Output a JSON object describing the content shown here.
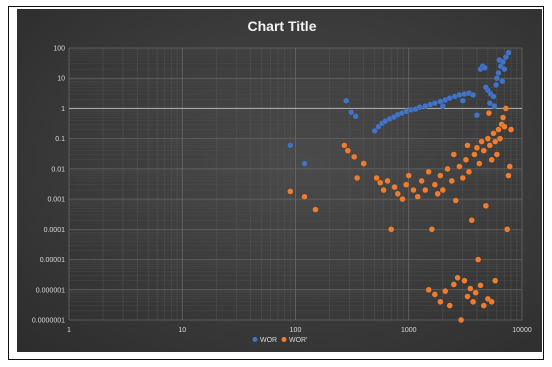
{
  "chart_data": {
    "type": "scatter",
    "title": "Chart Title",
    "xlabel": "",
    "ylabel": "",
    "xscale": "log",
    "yscale": "log",
    "xlim": [
      1,
      10000
    ],
    "ylim": [
      1e-07,
      100
    ],
    "x_ticks": [
      "1",
      "10",
      "100",
      "1000",
      "10000"
    ],
    "y_ticks": [
      "100",
      "10",
      "1",
      "0.1",
      "0.01",
      "0.001",
      "0.0001",
      "0.00001",
      "0.000001",
      "0.0000001"
    ],
    "grid": true,
    "reference_line_y": 1,
    "legend_position": "bottom",
    "series": [
      {
        "name": "WOR",
        "color": "#4472C4",
        "points": [
          [
            90,
            0.06
          ],
          [
            120,
            0.015
          ],
          [
            280,
            1.8
          ],
          [
            310,
            0.75
          ],
          [
            340,
            0.55
          ],
          [
            500,
            0.18
          ],
          [
            540,
            0.25
          ],
          [
            580,
            0.32
          ],
          [
            620,
            0.38
          ],
          [
            680,
            0.45
          ],
          [
            740,
            0.52
          ],
          [
            800,
            0.62
          ],
          [
            870,
            0.7
          ],
          [
            950,
            0.8
          ],
          [
            1050,
            0.9
          ],
          [
            1150,
            0.95
          ],
          [
            1250,
            1.1
          ],
          [
            1400,
            1.2
          ],
          [
            1550,
            1.35
          ],
          [
            1700,
            1.5
          ],
          [
            1900,
            1.7
          ],
          [
            2100,
            1.9
          ],
          [
            2300,
            2.2
          ],
          [
            2550,
            2.5
          ],
          [
            2800,
            2.8
          ],
          [
            3100,
            3.0
          ],
          [
            3400,
            3.2
          ],
          [
            3700,
            2.8
          ],
          [
            4000,
            0.6
          ],
          [
            4300,
            20
          ],
          [
            4500,
            25
          ],
          [
            4700,
            22
          ],
          [
            5000,
            4
          ],
          [
            5300,
            3
          ],
          [
            5600,
            2.5
          ],
          [
            5900,
            6
          ],
          [
            6200,
            15
          ],
          [
            6500,
            25
          ],
          [
            6800,
            35
          ],
          [
            7200,
            50
          ],
          [
            7600,
            70
          ],
          [
            5200,
            1.5
          ],
          [
            5700,
            1.2
          ],
          [
            6000,
            10
          ],
          [
            6700,
            8
          ],
          [
            7000,
            20
          ],
          [
            3000,
            1.8
          ],
          [
            2000,
            1.2
          ],
          [
            4800,
            5
          ],
          [
            6300,
            40
          ]
        ]
      },
      {
        "name": "WOR'",
        "color": "#ED7D31",
        "points": [
          [
            90,
            0.0018
          ],
          [
            120,
            0.0012
          ],
          [
            150,
            0.00045
          ],
          [
            270,
            0.06
          ],
          [
            290,
            0.04
          ],
          [
            330,
            0.025
          ],
          [
            350,
            0.005
          ],
          [
            400,
            0.015
          ],
          [
            520,
            0.005
          ],
          [
            560,
            0.0035
          ],
          [
            600,
            0.002
          ],
          [
            650,
            0.004
          ],
          [
            700,
            0.0001
          ],
          [
            750,
            0.0025
          ],
          [
            800,
            0.0015
          ],
          [
            880,
            0.001
          ],
          [
            950,
            0.003
          ],
          [
            1000,
            0.006
          ],
          [
            1100,
            0.002
          ],
          [
            1200,
            0.0012
          ],
          [
            1300,
            0.004
          ],
          [
            1400,
            0.002
          ],
          [
            1500,
            0.008
          ],
          [
            1600,
            0.0001
          ],
          [
            1700,
            0.003
          ],
          [
            1800,
            0.0015
          ],
          [
            1900,
            0.006
          ],
          [
            2000,
            0.002
          ],
          [
            2200,
            0.01
          ],
          [
            2400,
            0.004
          ],
          [
            2600,
            0.0009
          ],
          [
            2800,
            0.012
          ],
          [
            3000,
            0.005
          ],
          [
            3200,
            0.02
          ],
          [
            3400,
            0.008
          ],
          [
            3600,
            0.0002
          ],
          [
            3800,
            0.03
          ],
          [
            4000,
            0.05
          ],
          [
            4200,
            0.015
          ],
          [
            4400,
            0.08
          ],
          [
            4600,
            0.04
          ],
          [
            4800,
            0.0006
          ],
          [
            5000,
            0.1
          ],
          [
            5200,
            0.06
          ],
          [
            5400,
            0.02
          ],
          [
            5600,
            0.15
          ],
          [
            5800,
            0.08
          ],
          [
            6000,
            0.03
          ],
          [
            6200,
            0.2
          ],
          [
            6400,
            0.1
          ],
          [
            6600,
            0.3
          ],
          [
            6800,
            0.5
          ],
          [
            7000,
            0.25
          ],
          [
            7200,
            1.0
          ],
          [
            7400,
            0.0001
          ],
          [
            7600,
            0.006
          ],
          [
            7800,
            0.012
          ],
          [
            8000,
            0.2
          ],
          [
            5100,
            0.7
          ],
          [
            3300,
            0.06
          ],
          [
            2500,
            0.03
          ],
          [
            4100,
            1e-05
          ],
          [
            1500,
            1e-06
          ],
          [
            1700,
            7e-07
          ],
          [
            1900,
            4e-07
          ],
          [
            2100,
            9e-07
          ],
          [
            2300,
            3e-07
          ],
          [
            2500,
            1.5e-06
          ],
          [
            2700,
            2.5e-06
          ],
          [
            2900,
            1e-07
          ],
          [
            3100,
            2e-06
          ],
          [
            3300,
            6e-07
          ],
          [
            3500,
            1.1e-06
          ],
          [
            3700,
            4e-07
          ],
          [
            3900,
            8e-07
          ],
          [
            4300,
            1.4e-06
          ],
          [
            4600,
            3e-07
          ],
          [
            5000,
            5e-07
          ],
          [
            5400,
            4e-07
          ],
          [
            5800,
            2e-06
          ]
        ]
      }
    ]
  }
}
